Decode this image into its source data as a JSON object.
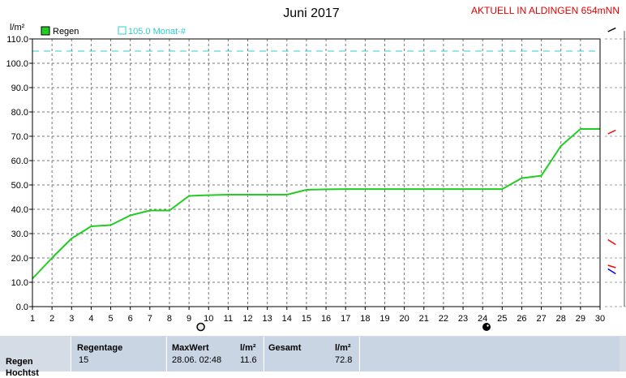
{
  "header": {
    "title": "Juni 2017",
    "station": "AKTUELL IN ALDINGEN 654mNN",
    "unit": "l/m²"
  },
  "legend": {
    "series_label": "Regen",
    "reference_label": "105.0 Monat-#"
  },
  "chart_data": {
    "type": "line",
    "title": "Juni 2017",
    "ylabel": "l/m²",
    "xlim": [
      1,
      30
    ],
    "ylim": [
      0,
      110
    ],
    "x_ticks": [
      1,
      2,
      3,
      4,
      5,
      6,
      7,
      8,
      9,
      10,
      11,
      12,
      13,
      14,
      15,
      16,
      17,
      18,
      19,
      20,
      21,
      22,
      23,
      24,
      25,
      26,
      27,
      28,
      29,
      30
    ],
    "y_ticks": [
      "0.0",
      "10.0",
      "20.0",
      "30.0",
      "40.0",
      "50.0",
      "60.0",
      "70.0",
      "80.0",
      "90.0",
      "100.0",
      "110.0"
    ],
    "grid": true,
    "series": [
      {
        "name": "Regen",
        "color": "#22cc22",
        "x": [
          1,
          2,
          3,
          3.6,
          4,
          5,
          6,
          7,
          8,
          9,
          10,
          11,
          14,
          15,
          16,
          17,
          25,
          26,
          27,
          28,
          29,
          30
        ],
        "values": [
          11.5,
          20.0,
          28.0,
          31.0,
          33.0,
          33.5,
          37.5,
          39.5,
          39.5,
          45.5,
          45.8,
          46.0,
          46.0,
          48.0,
          48.2,
          48.3,
          48.3,
          52.8,
          53.8,
          66.0,
          73.0,
          73.0
        ]
      },
      {
        "name": "105.0 Monat-#",
        "color": "#33cccc",
        "style": "dashed",
        "x": [
          1,
          30
        ],
        "values": [
          105.0,
          105.0
        ]
      }
    ],
    "moon_markers": [
      {
        "day": 9.6,
        "phase": "full"
      },
      {
        "day": 24.2,
        "phase": "new"
      }
    ],
    "right_edge_traces": [
      {
        "color": "#ff0000",
        "x": [
          30.4,
          30.8
        ],
        "values": [
          27.5,
          25.5
        ]
      },
      {
        "color": "#0000ff",
        "x": [
          30.4,
          30.8
        ],
        "values": [
          15.5,
          13.5
        ]
      },
      {
        "color": "#ff0000",
        "x": [
          30.4,
          30.8
        ],
        "values": [
          17.0,
          16.0
        ]
      },
      {
        "color": "#ff0000",
        "x": [
          30.4,
          30.8
        ],
        "values": [
          71.0,
          72.5
        ]
      },
      {
        "color": "#000000",
        "x": [
          30.4,
          30.8
        ],
        "values": [
          113.0,
          114.5
        ]
      }
    ]
  },
  "stats": {
    "row_label": "Regen",
    "row_label_2": "Hochtst",
    "regentage_label": "Regentage",
    "regentage_value": "15",
    "maxwert_label": "MaxWert",
    "maxwert_unit": "l/m²",
    "maxwert_time": "28.06.  02:48",
    "maxwert_value": "11.6",
    "gesamt_label": "Gesamt",
    "gesamt_unit": "l/m²",
    "gesamt_value": "72.8"
  }
}
